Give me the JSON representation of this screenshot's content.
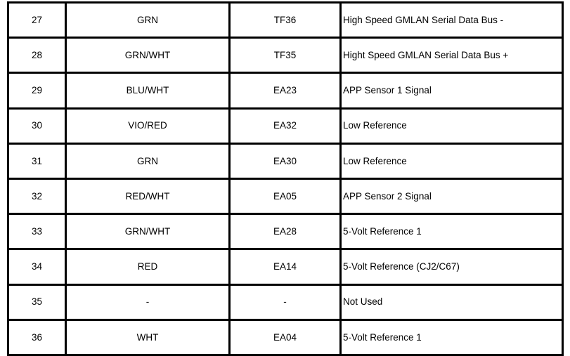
{
  "table": {
    "border_color": "#000000",
    "background": "#ffffff",
    "rows": [
      {
        "pin": "27",
        "color": "GRN",
        "terminal": "TF36",
        "description": "High Speed GMLAN Serial Data Bus -"
      },
      {
        "pin": "28",
        "color": "GRN/WHT",
        "terminal": "TF35",
        "description": "Hight Speed GMLAN Serial Data Bus +"
      },
      {
        "pin": "29",
        "color": "BLU/WHT",
        "terminal": "EA23",
        "description": "APP Sensor 1 Signal"
      },
      {
        "pin": "30",
        "color": "VIO/RED",
        "terminal": "EA32",
        "description": "Low Reference"
      },
      {
        "pin": "31",
        "color": "GRN",
        "terminal": "EA30",
        "description": "Low Reference"
      },
      {
        "pin": "32",
        "color": "RED/WHT",
        "terminal": "EA05",
        "description": "APP Sensor 2 Signal"
      },
      {
        "pin": "33",
        "color": "GRN/WHT",
        "terminal": "EA28",
        "description": "5-Volt Reference 1"
      },
      {
        "pin": "34",
        "color": "RED",
        "terminal": "EA14",
        "description": "5-Volt Reference (CJ2/C67)"
      },
      {
        "pin": "35",
        "color": "-",
        "terminal": "-",
        "description": "Not Used"
      },
      {
        "pin": "36",
        "color": "WHT",
        "terminal": "EA04",
        "description": "5-Volt Reference 1"
      }
    ]
  }
}
